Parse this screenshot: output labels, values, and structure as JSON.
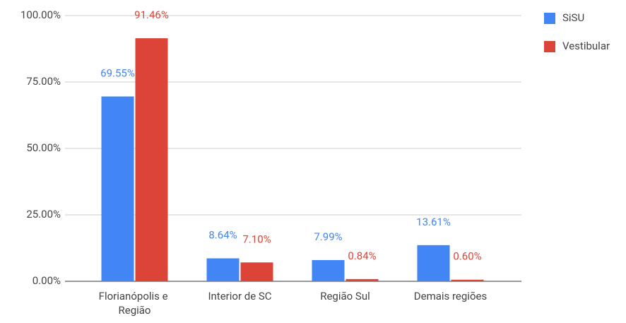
{
  "chart_data": {
    "type": "bar",
    "categories": [
      "Florianópolis e Região",
      "Interior de SC",
      "Região Sul",
      "Demais regiões"
    ],
    "series": [
      {
        "name": "SiSU",
        "color": "#4285f4",
        "values": [
          69.55,
          8.64,
          7.99,
          13.61
        ],
        "value_labels": [
          "69.55%",
          "8.64%",
          "7.99%",
          "13.61%"
        ]
      },
      {
        "name": "Vestibular",
        "color": "#db4437",
        "values": [
          91.46,
          7.1,
          0.84,
          0.6
        ],
        "value_labels": [
          "91.46%",
          "7.10%",
          "0.84%",
          "0.60%"
        ]
      }
    ],
    "ylim": [
      0,
      100
    ],
    "yticks": [
      {
        "value": 0,
        "label": "0.00%"
      },
      {
        "value": 25,
        "label": "25.00%"
      },
      {
        "value": 50,
        "label": "50.00%"
      },
      {
        "value": 75,
        "label": "75.00%"
      },
      {
        "value": 100,
        "label": "100.00%"
      }
    ],
    "grid": true,
    "legend": "right"
  }
}
